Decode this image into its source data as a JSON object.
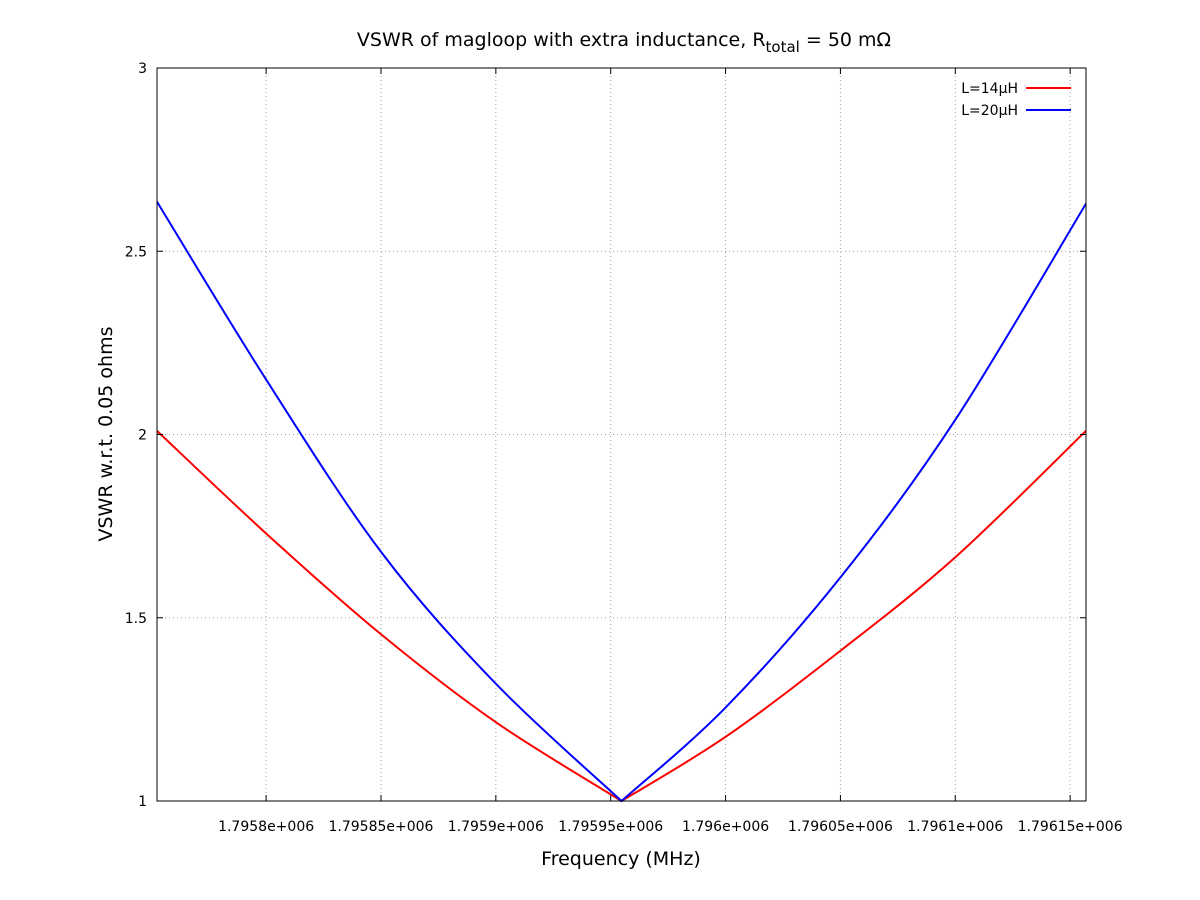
{
  "chart_data": {
    "type": "line",
    "title": {
      "main": "VSWR of magloop with extra inductance, R",
      "subscript": "total",
      "suffix": " = 50 mΩ"
    },
    "xlabel": "Frequency (MHz)",
    "ylabel": "VSWR w.r.t. 0.05 ohms",
    "xlim": [
      1795752.5,
      1796156.9
    ],
    "ylim": [
      1,
      3
    ],
    "xticks": [
      {
        "value": 1795800,
        "label": "1.7958e+006"
      },
      {
        "value": 1795850,
        "label": "1.79585e+006"
      },
      {
        "value": 1795900,
        "label": "1.7959e+006"
      },
      {
        "value": 1795950,
        "label": "1.79595e+006"
      },
      {
        "value": 1796000,
        "label": "1.796e+006"
      },
      {
        "value": 1796050,
        "label": "1.79605e+006"
      },
      {
        "value": 1796100,
        "label": "1.7961e+006"
      },
      {
        "value": 1796150,
        "label": "1.79615e+006"
      }
    ],
    "yticks": [
      {
        "value": 1,
        "label": "1"
      },
      {
        "value": 1.5,
        "label": "1.5"
      },
      {
        "value": 2,
        "label": "2"
      },
      {
        "value": 2.5,
        "label": "2.5"
      },
      {
        "value": 3,
        "label": "3"
      }
    ],
    "grid": true,
    "legend_position": "top-right",
    "series": [
      {
        "name": "L=14µH",
        "color": "#ff0000",
        "x": [
          1795752.5,
          1795800,
          1795850,
          1795900,
          1795954.7,
          1796000,
          1796050,
          1796100,
          1796156.9
        ],
        "y": [
          2.01,
          1.73,
          1.455,
          1.215,
          1.0,
          1.175,
          1.41,
          1.665,
          2.01
        ]
      },
      {
        "name": "L=20µH",
        "color": "#0000ff",
        "x": [
          1795752.5,
          1795800,
          1795850,
          1795900,
          1795954.7,
          1796000,
          1796050,
          1796100,
          1796156.9
        ],
        "y": [
          2.635,
          2.15,
          1.68,
          1.32,
          1.0,
          1.255,
          1.61,
          2.04,
          2.63
        ]
      }
    ]
  }
}
